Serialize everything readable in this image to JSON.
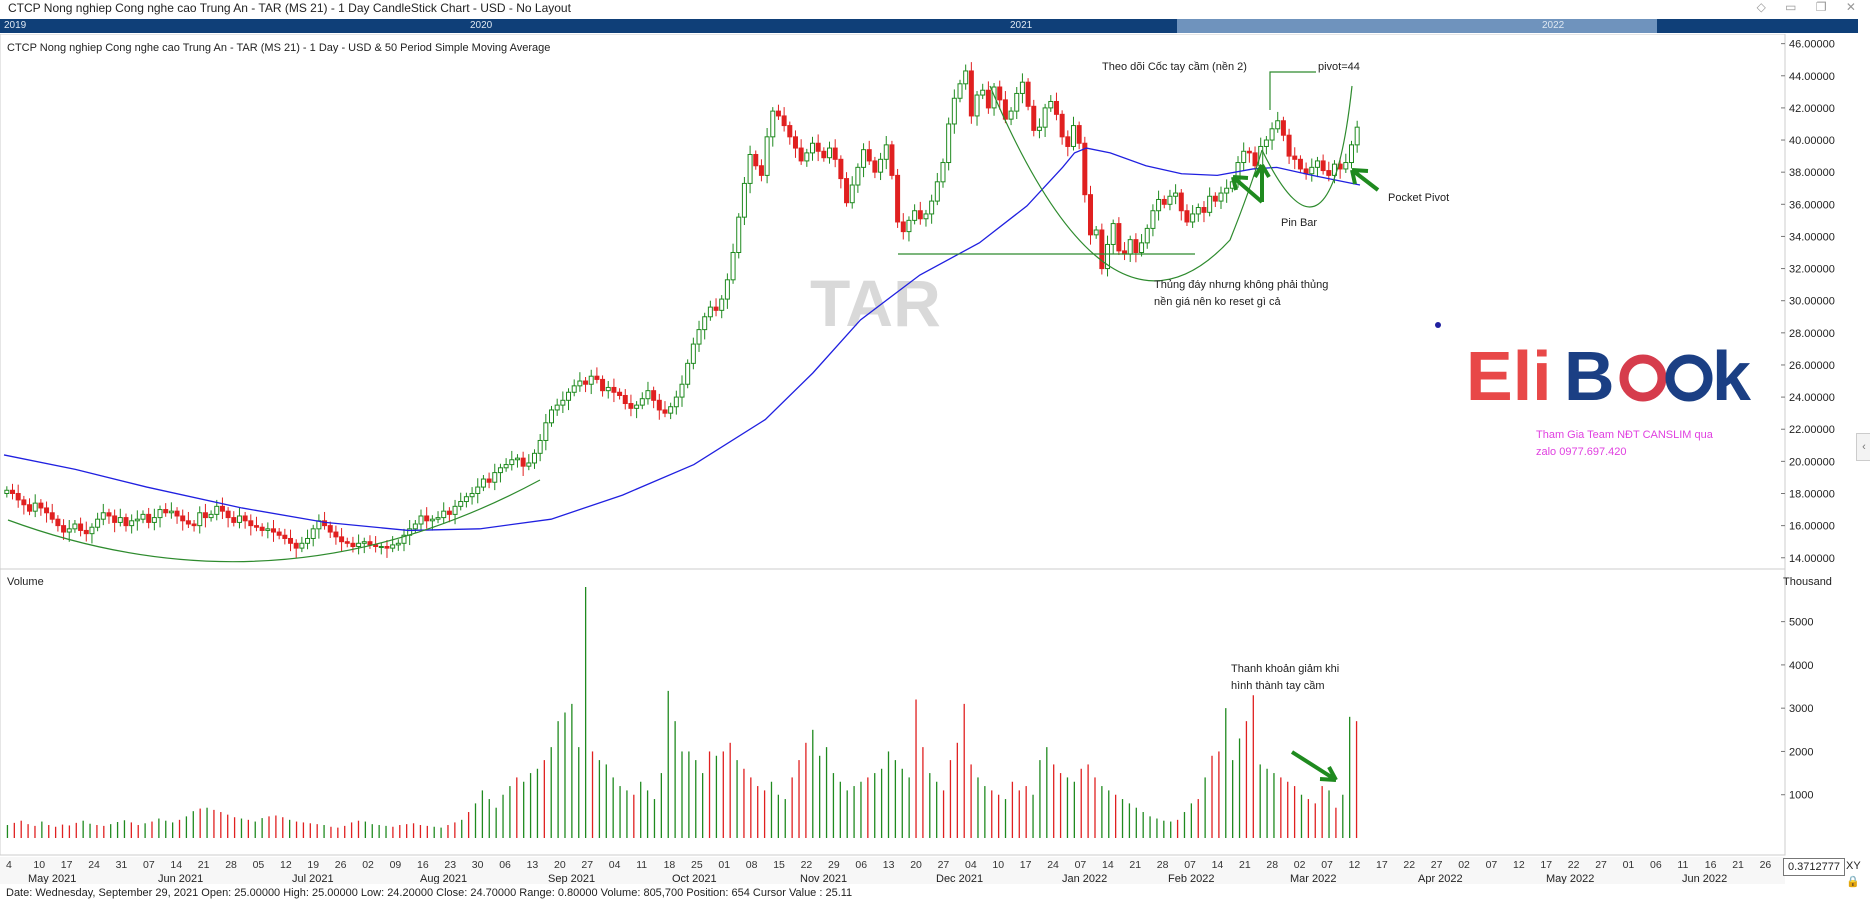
{
  "window": {
    "title": "CTCP Nong nghiep Cong nghe cao Trung An - TAR (MS 21) - 1 Day CandleStick Chart - USD - No Layout",
    "icons": [
      "pin-icon",
      "minimize-icon",
      "restore-icon",
      "close-icon"
    ]
  },
  "navigator": {
    "years": [
      "2019",
      "2020",
      "2021",
      "2022"
    ]
  },
  "chart": {
    "subtitle": "CTCP Nong nghiep Cong nghe cao Trung An - TAR (MS 21) - 1 Day - USD & 50 Period Simple Moving Average",
    "watermark": "TAR",
    "brand_logo": {
      "left": "Eli",
      "b": "B",
      "right": "k"
    },
    "promo_line1": "Tham Gia Team NĐT CANSLIM qua",
    "promo_line2": "zalo 0977.697.420",
    "volume_label": "Volume",
    "volume_unit": "Thousand"
  },
  "annotations": {
    "cup_handle": "Theo dõi Cốc  tay cầm (nền 2)",
    "pivot": "pivot=44",
    "pocket_pivot": "Pocket Pivot",
    "pin_bar": "Pin Bar",
    "undercut_line1": "Thủng đáy nhưng không phải thủng",
    "undercut_line2": "nền giá nên ko reset gì cả",
    "volume_note_line1": "Thanh khoản giảm khi",
    "volume_note_line2": "hình thành tay cầm"
  },
  "colors": {
    "up": "#1f8a1f",
    "down": "#e02020",
    "ma": "#2020e0",
    "annotation": "#2e8b2e",
    "arrow": "#1f8a1f",
    "navigator": "#0f3f78",
    "promo": "#e040e0"
  },
  "chart_data": {
    "type": "candlestick",
    "title": "CTCP Nong nghiep Cong nghe cao Trung An - TAR (MS 21) - 1 Day - USD & 50 Period Simple Moving Average",
    "price_axis": {
      "ylim": [
        13.3,
        46.6
      ],
      "ticks": [
        "46.00000",
        "44.00000",
        "42.00000",
        "40.00000",
        "38.00000",
        "36.00000",
        "34.00000",
        "32.00000",
        "30.00000",
        "28.00000",
        "26.00000",
        "24.00000",
        "22.00000",
        "20.00000",
        "18.00000",
        "16.00000",
        "14.00000"
      ]
    },
    "volume_axis": {
      "unit": "Thousand",
      "ylim": [
        0,
        5800
      ],
      "ticks": [
        "5000",
        "4000",
        "3000",
        "2000",
        "1000"
      ]
    },
    "x_day_labels": [
      "4",
      "10",
      "17",
      "24",
      "31",
      "07",
      "14",
      "21",
      "28",
      "05",
      "12",
      "19",
      "26",
      "02",
      "09",
      "16",
      "23",
      "30",
      "06",
      "13",
      "20",
      "27",
      "04",
      "11",
      "18",
      "25",
      "01",
      "08",
      "15",
      "22",
      "29",
      "06",
      "13",
      "20",
      "27",
      "04",
      "10",
      "17",
      "24",
      "07",
      "14",
      "21",
      "28",
      "07",
      "14",
      "21",
      "28",
      "02",
      "07",
      "12",
      "17",
      "22",
      "27",
      "02",
      "07",
      "12",
      "17",
      "22",
      "27",
      "01",
      "06",
      "11",
      "16",
      "21",
      "26"
    ],
    "x_month_labels": [
      "May 2021",
      "Jun 2021",
      "Jul 2021",
      "Aug 2021",
      "Sep 2021",
      "Oct 2021",
      "Nov 2021",
      "Dec 2021",
      "Jan 2022",
      "Feb 2022",
      "Mar 2022",
      "Apr 2022",
      "May 2022",
      "Jun 2022"
    ],
    "ma_period": 50,
    "ma_points": [
      [
        0,
        20.4
      ],
      [
        60,
        19.5
      ],
      [
        120,
        18.4
      ],
      [
        200,
        17.1
      ],
      [
        270,
        16.2
      ],
      [
        340,
        15.7
      ],
      [
        400,
        15.8
      ],
      [
        460,
        16.4
      ],
      [
        520,
        17.9
      ],
      [
        580,
        19.8
      ],
      [
        640,
        22.6
      ],
      [
        680,
        25.5
      ],
      [
        720,
        28.8
      ],
      [
        770,
        31.6
      ],
      [
        820,
        33.6
      ],
      [
        860,
        35.9
      ],
      [
        890,
        38.3
      ],
      [
        900,
        39.2
      ],
      [
        910,
        39.5
      ],
      [
        930,
        39.2
      ],
      [
        960,
        38.4
      ],
      [
        990,
        37.9
      ],
      [
        1020,
        37.8
      ],
      [
        1050,
        38.2
      ],
      [
        1070,
        38.3
      ],
      [
        1100,
        37.8
      ],
      [
        1140,
        37.2
      ]
    ],
    "series": [
      {
        "name": "candles",
        "closes": [
          18.2,
          18.0,
          17.6,
          17.3,
          16.9,
          17.4,
          17.1,
          16.8,
          16.4,
          16.0,
          15.6,
          15.8,
          16.1,
          15.7,
          15.5,
          15.9,
          16.4,
          16.8,
          16.6,
          16.2,
          16.5,
          16.0,
          16.3,
          16.4,
          16.7,
          16.2,
          16.5,
          17.0,
          16.8,
          16.9,
          16.6,
          16.3,
          16.1,
          16.0,
          16.8,
          16.5,
          16.7,
          17.2,
          16.9,
          16.5,
          16.2,
          16.6,
          16.3,
          16.0,
          15.9,
          15.7,
          15.8,
          15.6,
          15.4,
          15.2,
          14.9,
          14.6,
          14.9,
          15.2,
          15.8,
          16.3,
          16.0,
          15.6,
          15.3,
          15.0,
          14.9,
          14.7,
          14.9,
          15.0,
          14.8,
          14.7,
          14.7,
          14.6,
          14.8,
          14.9,
          15.4,
          15.8,
          16.1,
          16.6,
          16.3,
          16.4,
          16.5,
          16.9,
          16.7,
          17.2,
          17.5,
          17.8,
          18.0,
          18.4,
          18.9,
          18.7,
          19.3,
          19.6,
          19.8,
          20.1,
          20.2,
          19.7,
          19.9,
          20.5,
          21.3,
          22.4,
          23.2,
          23.5,
          23.8,
          24.3,
          24.7,
          25.0,
          24.8,
          25.3,
          25.1,
          24.4,
          24.6,
          24.3,
          24.1,
          23.6,
          23.3,
          23.5,
          23.9,
          24.4,
          23.8,
          23.2,
          23.0,
          23.4,
          24.0,
          24.8,
          26.1,
          27.3,
          28.2,
          29.0,
          29.6,
          29.4,
          30.1,
          31.3,
          33.0,
          35.2,
          37.3,
          39.1,
          38.4,
          37.8,
          40.2,
          41.8,
          41.5,
          40.9,
          40.2,
          39.5,
          38.7,
          39.2,
          39.8,
          39.3,
          38.9,
          39.5,
          38.8,
          37.6,
          36.1,
          37.2,
          38.3,
          39.4,
          38.7,
          38.0,
          38.8,
          39.7,
          37.8,
          34.9,
          34.3,
          35.0,
          35.6,
          35.1,
          35.4,
          36.2,
          37.4,
          38.6,
          41.0,
          42.6,
          43.5,
          44.3,
          41.5,
          42.8,
          43.1,
          42.0,
          43.3,
          42.5,
          41.3,
          41.8,
          42.9,
          43.6,
          42.1,
          40.6,
          40.8,
          42.0,
          42.4,
          41.6,
          40.2,
          39.6,
          40.9,
          39.8,
          36.6,
          34.1,
          34.4,
          32.0,
          33.5,
          34.8,
          33.1,
          32.9,
          33.8,
          33.0,
          33.6,
          34.5,
          35.6,
          36.3,
          36.0,
          36.5,
          36.7,
          35.6,
          34.9,
          35.4,
          35.8,
          35.5,
          36.5,
          36.2,
          36.7,
          37.0,
          37.4,
          38.6,
          39.3,
          39.2,
          38.4,
          39.6,
          40.0,
          40.7,
          41.2,
          40.3,
          39.0,
          38.8,
          38.2,
          37.9,
          38.3,
          38.7,
          38.1,
          37.8,
          38.5,
          38.2,
          38.6,
          39.7,
          40.8
        ]
      }
    ],
    "volume": [
      300,
      350,
      400,
      320,
      280,
      380,
      300,
      260,
      310,
      290,
      350,
      400,
      330,
      300,
      280,
      320,
      370,
      410,
      360,
      300,
      340,
      380,
      450,
      400,
      360,
      420,
      500,
      620,
      680,
      700,
      650,
      600,
      540,
      480,
      450,
      420,
      380,
      460,
      500,
      520,
      480,
      420,
      380,
      360,
      340,
      320,
      300,
      260,
      240,
      280,
      360,
      400,
      380,
      320,
      300,
      280,
      260,
      300,
      320,
      340,
      300,
      280,
      260,
      240,
      300,
      360,
      420,
      600,
      800,
      1100,
      900,
      700,
      1000,
      1200,
      1400,
      1300,
      1500,
      1600,
      1800,
      2100,
      2700,
      2900,
      3100,
      2100,
      5800,
      2000,
      1800,
      1700,
      1400,
      1200,
      1100,
      1000,
      1300,
      1100,
      900,
      1500,
      3400,
      2700,
      2000,
      2000,
      1800,
      1500,
      2000,
      1900,
      2000,
      2200,
      1800,
      1600,
      1400,
      1200,
      1100,
      1300,
      1000,
      900,
      1400,
      1800,
      2200,
      2500,
      1900,
      2100,
      1500,
      1300,
      1100,
      1200,
      1300,
      1400,
      1500,
      1600,
      2000,
      1800,
      1600,
      1400,
      3200,
      2100,
      1500,
      1300,
      1100,
      1800,
      2200,
      3100,
      1700,
      1400,
      1200,
      1100,
      1000,
      900,
      1300,
      1100,
      1200,
      1000,
      1800,
      2100,
      1700,
      1500,
      1400,
      1300,
      1600,
      1700,
      1400,
      1200,
      1100,
      1000,
      900,
      800,
      700,
      600,
      500,
      450,
      400,
      380,
      420,
      600,
      800,
      900,
      1400,
      1900,
      2000,
      3000,
      1800,
      2300,
      2700,
      3300,
      1700,
      1600,
      1500,
      1400,
      1300,
      1200,
      1000,
      900,
      800,
      1200,
      1100,
      700,
      1000,
      2800,
      2700
    ]
  }
}
